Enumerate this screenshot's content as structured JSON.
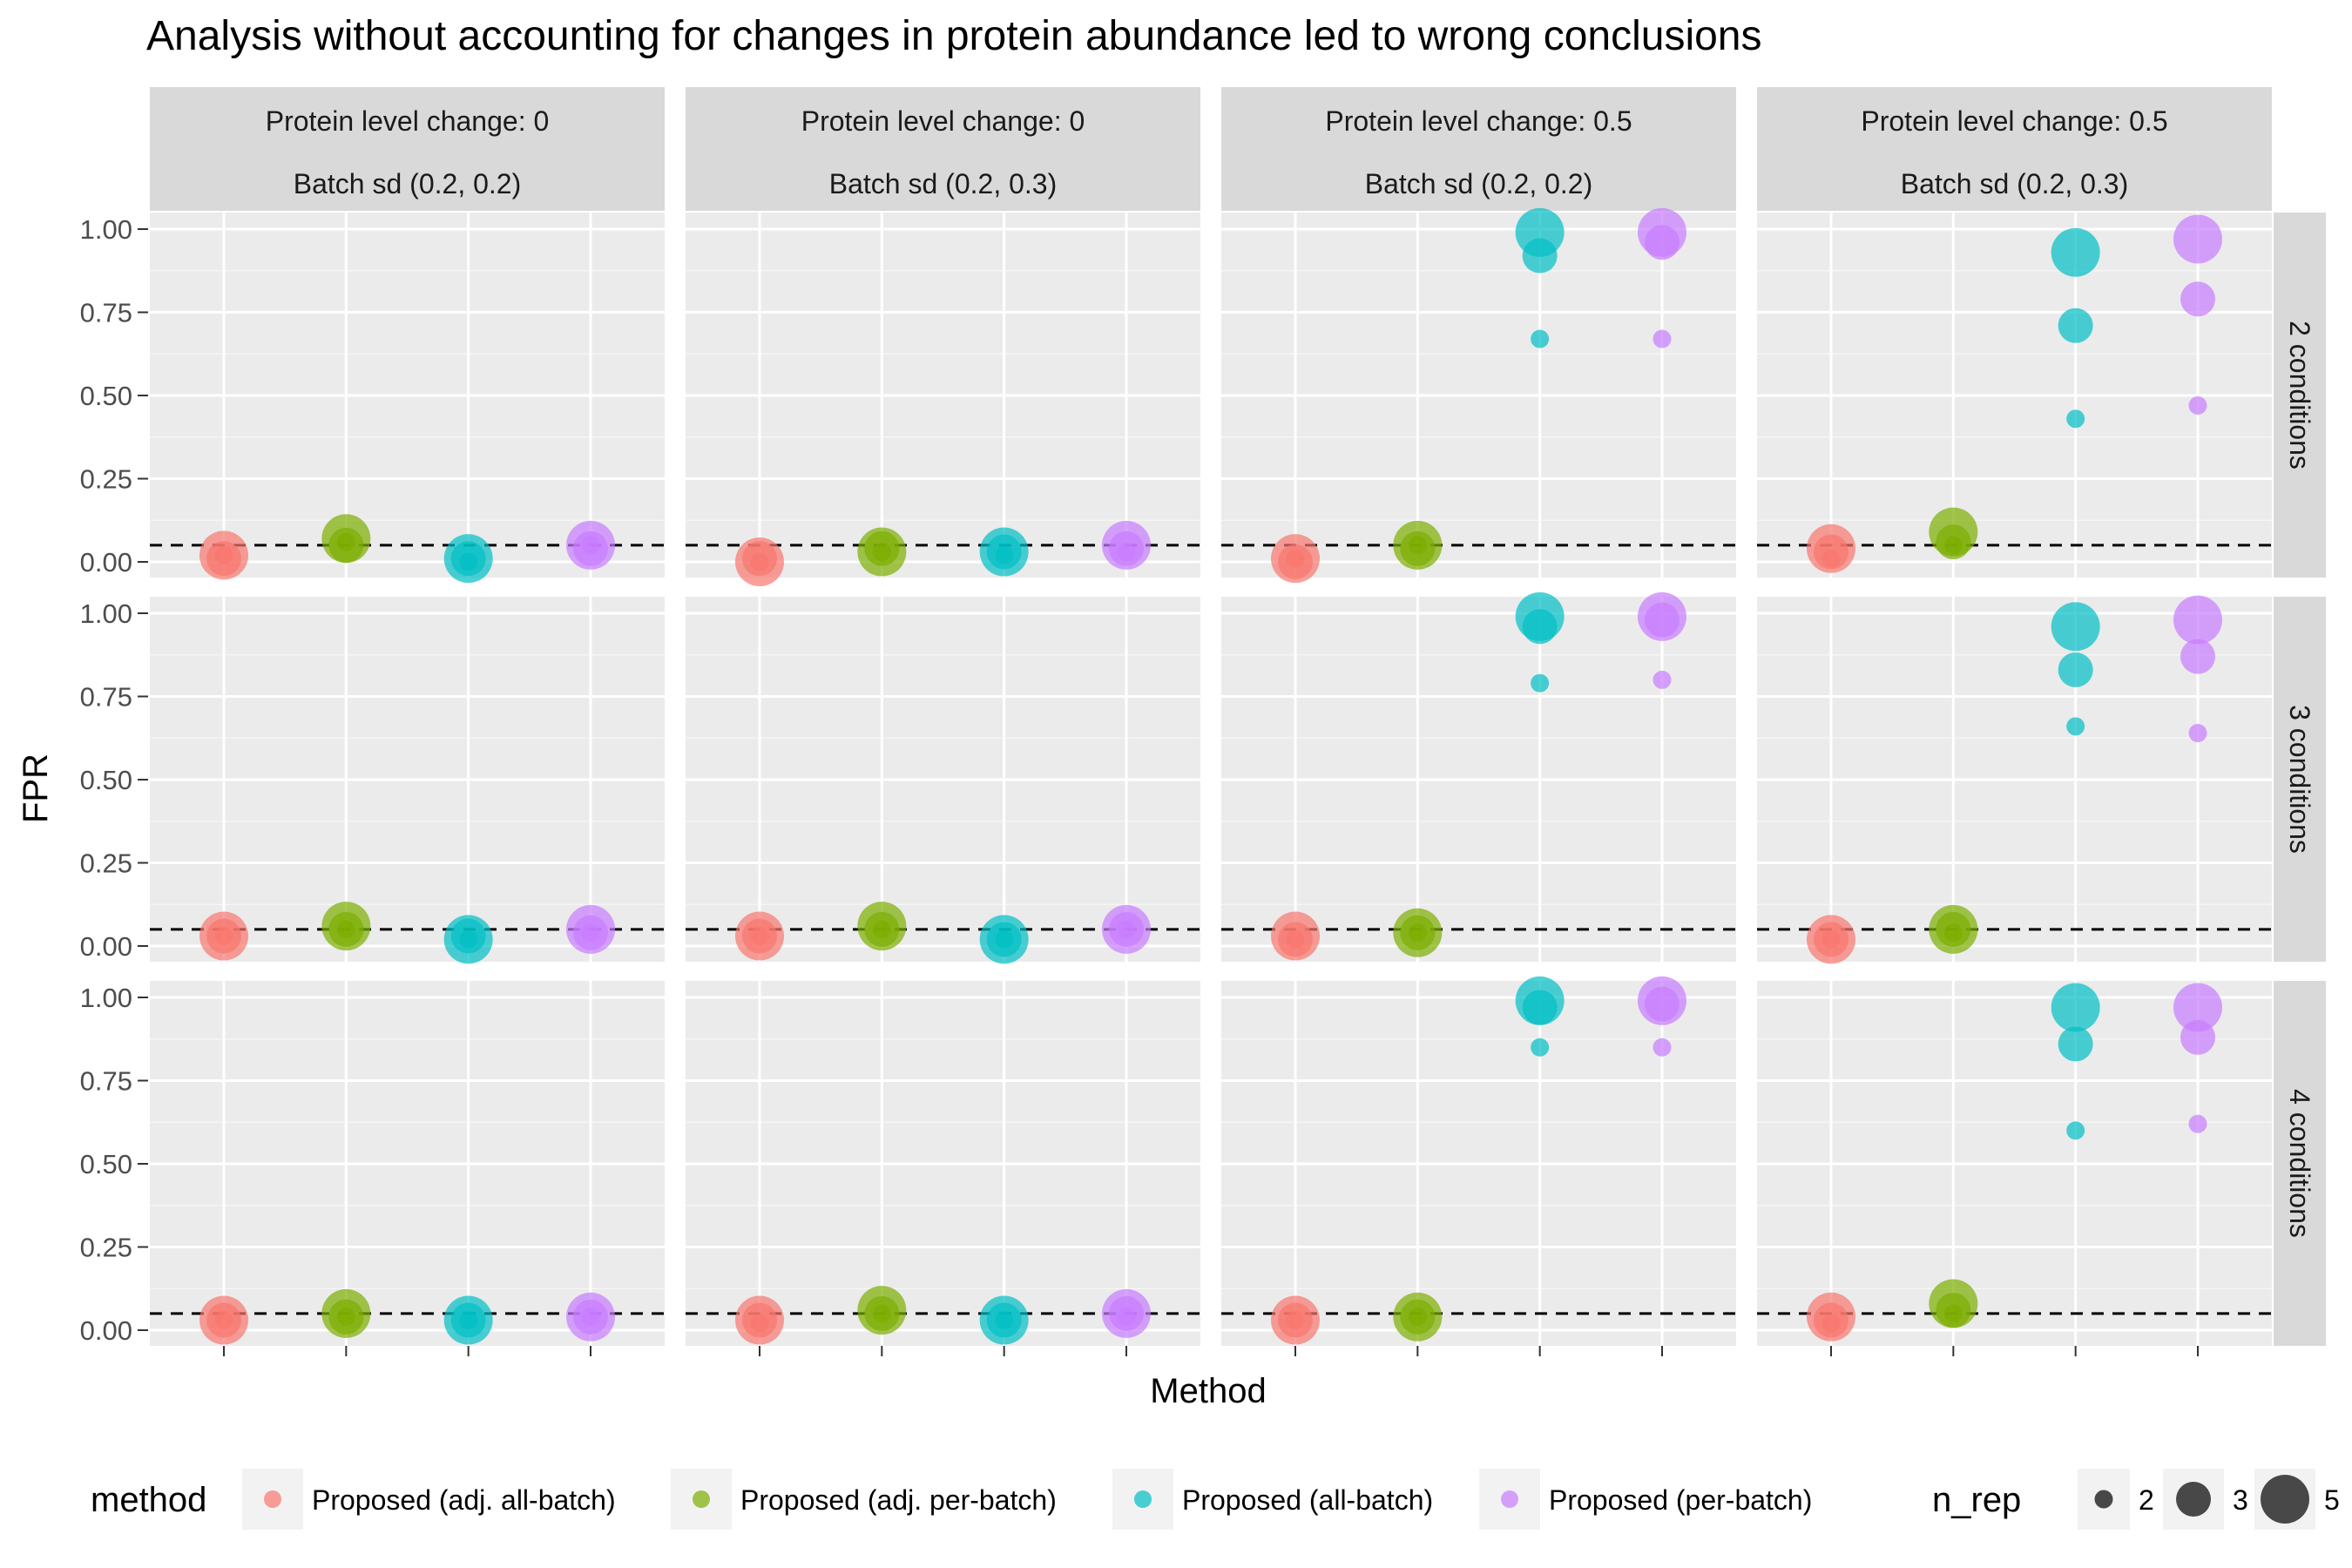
{
  "chart_data": {
    "type": "scatter",
    "title": "Analysis without accounting for changes in protein abundance led to wrong conclusions",
    "xlabel": "Method",
    "ylabel": "FPR",
    "ylim": [
      0,
      1
    ],
    "yticks": [
      "0.00",
      "0.25",
      "0.50",
      "0.75",
      "1.00"
    ],
    "reference_line": 0.05,
    "grid": true,
    "legend_position": "bottom",
    "colors": {
      "Proposed (adj. all-batch)": "#F8766D",
      "Proposed (adj. per-batch)": "#7CAE00",
      "Proposed (all-batch)": "#00BFC4",
      "Proposed (per-batch)": "#C77CFF"
    },
    "legend": {
      "color_title": "method",
      "color_items": [
        "Proposed (adj. all-batch)",
        "Proposed (adj. per-batch)",
        "Proposed (all-batch)",
        "Proposed (per-batch)"
      ],
      "size_title": "n_rep",
      "size_items": [
        "2",
        "3",
        "5"
      ]
    },
    "columns": [
      {
        "line1": "Protein level change: 0",
        "line2": "Batch sd (0.2, 0.2)"
      },
      {
        "line1": "Protein level change: 0",
        "line2": "Batch sd (0.2, 0.3)"
      },
      {
        "line1": "Protein level change: 0.5",
        "line2": "Batch sd (0.2, 0.2)"
      },
      {
        "line1": "Protein level change: 0.5",
        "line2": "Batch sd (0.2, 0.3)"
      }
    ],
    "rows": [
      "2 conditions",
      "3 conditions",
      "4 conditions"
    ],
    "methods": [
      "Proposed (adj. all-batch)",
      "Proposed (adj. per-batch)",
      "Proposed (all-batch)",
      "Proposed (per-batch)"
    ],
    "n_rep_values": [
      2,
      3,
      5
    ],
    "panels": [
      [
        {
          "values": [
            [
              0.02,
              0.01,
              0.02
            ],
            [
              0.06,
              0.05,
              0.07
            ],
            [
              0.0,
              0.01,
              0.01
            ],
            [
              0.05,
              0.04,
              0.05
            ]
          ]
        },
        {
          "values": [
            [
              0.0,
              0.01,
              0.0
            ],
            [
              0.03,
              0.04,
              0.03
            ],
            [
              0.02,
              0.03,
              0.03
            ],
            [
              0.03,
              0.04,
              0.05
            ]
          ]
        },
        {
          "values": [
            [
              0.01,
              0.0,
              0.01
            ],
            [
              0.05,
              0.04,
              0.05
            ],
            [
              0.67,
              0.92,
              0.99
            ],
            [
              0.67,
              0.96,
              0.99
            ]
          ]
        },
        {
          "values": [
            [
              0.01,
              0.03,
              0.04
            ],
            [
              0.05,
              0.06,
              0.09
            ],
            [
              0.43,
              0.71,
              0.93
            ],
            [
              0.47,
              0.79,
              0.97
            ]
          ]
        }
      ],
      [
        {
          "values": [
            [
              0.03,
              0.03,
              0.03
            ],
            [
              0.05,
              0.05,
              0.06
            ],
            [
              0.02,
              0.03,
              0.02
            ],
            [
              0.04,
              0.04,
              0.05
            ]
          ]
        },
        {
          "values": [
            [
              0.03,
              0.03,
              0.03
            ],
            [
              0.05,
              0.05,
              0.06
            ],
            [
              0.02,
              0.02,
              0.02
            ],
            [
              0.05,
              0.05,
              0.05
            ]
          ]
        },
        {
          "values": [
            [
              0.02,
              0.02,
              0.03
            ],
            [
              0.04,
              0.04,
              0.04
            ],
            [
              0.79,
              0.96,
              0.99
            ],
            [
              0.8,
              0.98,
              0.99
            ]
          ]
        },
        {
          "values": [
            [
              0.02,
              0.02,
              0.02
            ],
            [
              0.04,
              0.05,
              0.05
            ],
            [
              0.66,
              0.83,
              0.96
            ],
            [
              0.64,
              0.87,
              0.98
            ]
          ]
        }
      ],
      [
        {
          "values": [
            [
              0.03,
              0.03,
              0.03
            ],
            [
              0.04,
              0.04,
              0.05
            ],
            [
              0.03,
              0.03,
              0.03
            ],
            [
              0.04,
              0.04,
              0.04
            ]
          ]
        },
        {
          "values": [
            [
              0.02,
              0.03,
              0.03
            ],
            [
              0.05,
              0.05,
              0.06
            ],
            [
              0.03,
              0.03,
              0.03
            ],
            [
              0.04,
              0.05,
              0.05
            ]
          ]
        },
        {
          "values": [
            [
              0.03,
              0.03,
              0.03
            ],
            [
              0.04,
              0.04,
              0.04
            ],
            [
              0.85,
              0.97,
              0.99
            ],
            [
              0.85,
              0.98,
              0.99
            ]
          ]
        },
        {
          "values": [
            [
              0.02,
              0.03,
              0.04
            ],
            [
              0.05,
              0.06,
              0.08
            ],
            [
              0.6,
              0.86,
              0.97
            ],
            [
              0.62,
              0.88,
              0.97
            ]
          ]
        }
      ]
    ]
  }
}
